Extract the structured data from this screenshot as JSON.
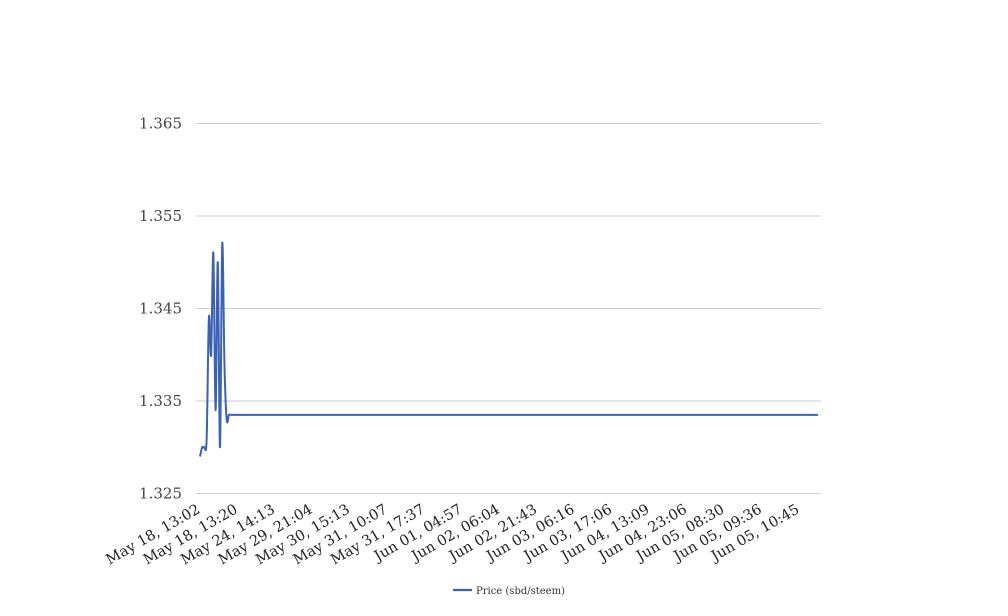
{
  "chart_data": {
    "type": "line",
    "title": "",
    "xlabel": "",
    "ylabel": "",
    "ylim": [
      1.325,
      1.365
    ],
    "yticks": [
      "1.325",
      "1.335",
      "1.345",
      "1.355",
      "1.365"
    ],
    "grid": true,
    "legend_position": "bottom-center",
    "x_tick_labels": [
      "May 18, 13:02",
      "May 18, 13:20",
      "May 24, 14:13",
      "May 29, 21:04",
      "May 30, 15:13",
      "May 31, 10:07",
      "May 31, 17:37",
      "Jun 01, 04:57",
      "Jun 02, 06:04",
      "Jun 02, 21:43",
      "Jun 03, 06:16",
      "Jun 03, 17:06",
      "Jun 04, 13:09",
      "Jun 04, 23:06",
      "Jun 05, 08:30",
      "Jun 05, 09:36",
      "Jun 05, 10:45"
    ],
    "series": [
      {
        "name": "Price (sbd/steem)",
        "color": "#3a63b8",
        "values": [
          1.329,
          1.33,
          1.33,
          1.331,
          1.344,
          1.34,
          1.351,
          1.334,
          1.35,
          1.33,
          1.352,
          1.339,
          1.333,
          1.3335,
          1.3335,
          1.3335,
          1.3335,
          1.3335,
          1.3335,
          1.3335,
          1.3335,
          1.3335,
          1.3335,
          1.3335,
          1.3335,
          1.3335,
          1.3335,
          1.3335,
          1.3335,
          1.3335,
          1.3335,
          1.3335,
          1.3335,
          1.3335,
          1.3335,
          1.3335,
          1.3335,
          1.3335,
          1.3335,
          1.3335,
          1.3335,
          1.3335,
          1.3335,
          1.3335,
          1.3335,
          1.3335,
          1.3335,
          1.3335,
          1.3335,
          1.3335,
          1.3335,
          1.3335,
          1.3335,
          1.3335,
          1.3335,
          1.3335,
          1.3335,
          1.3335,
          1.3335,
          1.3335,
          1.3335,
          1.3335,
          1.3335,
          1.3335,
          1.3335,
          1.3335,
          1.3335,
          1.3335,
          1.3335,
          1.3335,
          1.3335,
          1.3335,
          1.3335,
          1.3335,
          1.3335,
          1.3335,
          1.3335,
          1.3335,
          1.3335,
          1.3335,
          1.3335,
          1.3335,
          1.3335,
          1.3335,
          1.3335,
          1.3335,
          1.3335,
          1.3335,
          1.3335,
          1.3335,
          1.3335,
          1.3335,
          1.3335,
          1.3335,
          1.3335,
          1.3335,
          1.3335,
          1.3335,
          1.3335,
          1.3335,
          1.3335,
          1.3335,
          1.3335,
          1.3335,
          1.3335,
          1.3335,
          1.3335,
          1.3335,
          1.3335,
          1.3335,
          1.3335,
          1.3335,
          1.3335,
          1.3335,
          1.3335,
          1.3335,
          1.3335,
          1.3335,
          1.3335,
          1.3335,
          1.3335,
          1.3335,
          1.3335,
          1.3335,
          1.3335,
          1.3335,
          1.3335,
          1.3335,
          1.3335,
          1.3335,
          1.3335,
          1.3335,
          1.3335,
          1.3335,
          1.3335,
          1.3335,
          1.3335,
          1.3335,
          1.3335,
          1.3335,
          1.3335,
          1.3335,
          1.3335,
          1.3335,
          1.3335,
          1.3335,
          1.3335,
          1.3335,
          1.3335,
          1.3335,
          1.3335,
          1.3335,
          1.3335,
          1.3335,
          1.3335,
          1.3335,
          1.3335,
          1.3335,
          1.3335,
          1.3335,
          1.3335,
          1.3335,
          1.3335,
          1.3335,
          1.3335,
          1.3335,
          1.3335,
          1.3335,
          1.3335,
          1.3335,
          1.3335,
          1.3335,
          1.3335,
          1.3335,
          1.3335,
          1.3335,
          1.3335,
          1.3335,
          1.3335,
          1.3335,
          1.3335,
          1.3335,
          1.3335,
          1.3335,
          1.3335,
          1.3335,
          1.3335,
          1.3335,
          1.3335,
          1.3335,
          1.3335,
          1.3335,
          1.3335,
          1.3335,
          1.3335,
          1.3335,
          1.3335,
          1.3335,
          1.3335,
          1.3335,
          1.3335,
          1.3335,
          1.3335,
          1.3335,
          1.3335,
          1.3335,
          1.3335,
          1.3335,
          1.3335,
          1.3335,
          1.3335,
          1.3335,
          1.3335,
          1.3335,
          1.3335,
          1.3335,
          1.3335,
          1.3335,
          1.3335,
          1.3335,
          1.3335,
          1.3335,
          1.3335,
          1.3335,
          1.3335,
          1.3335,
          1.3335,
          1.3335,
          1.3335,
          1.3335,
          1.3335,
          1.3335,
          1.3335,
          1.3335,
          1.3335,
          1.3335,
          1.3335,
          1.3335,
          1.3335,
          1.3335,
          1.3335,
          1.3335,
          1.3335,
          1.3335,
          1.3335,
          1.3335,
          1.3335,
          1.3335,
          1.3335,
          1.3335,
          1.3335,
          1.3335,
          1.3335,
          1.3335,
          1.3335,
          1.3335,
          1.3335,
          1.3335,
          1.3335,
          1.3335,
          1.3335,
          1.3335,
          1.3335,
          1.3335,
          1.3335,
          1.3335,
          1.3335,
          1.3335,
          1.3335,
          1.3335,
          1.3335,
          1.3335,
          1.3335,
          1.3335,
          1.3335,
          1.3335,
          1.3335,
          1.3335,
          1.3335
        ]
      }
    ]
  }
}
